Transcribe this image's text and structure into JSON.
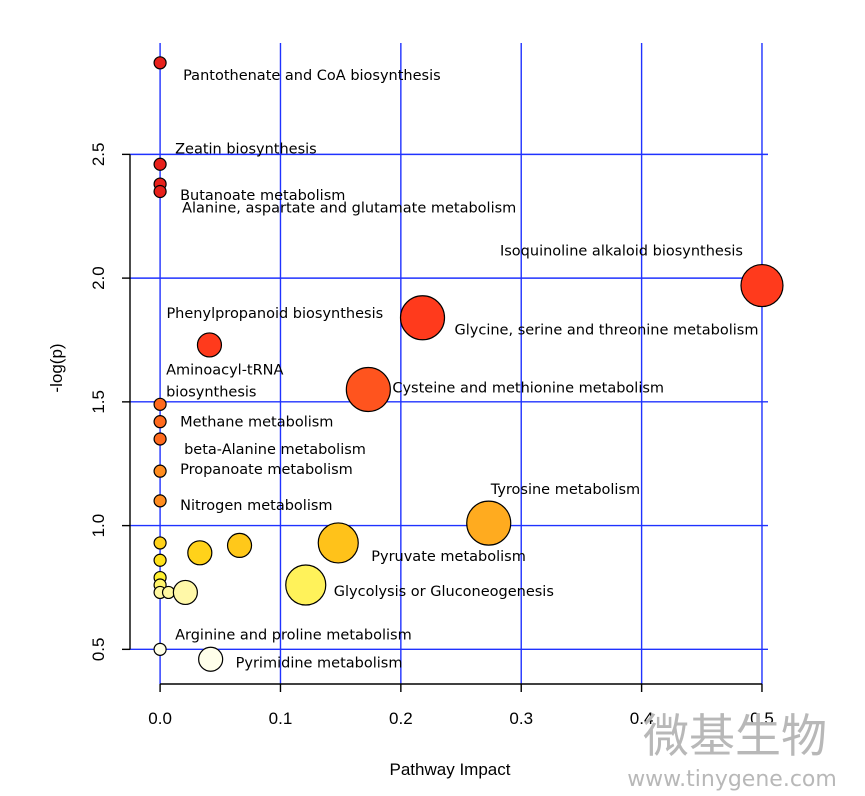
{
  "chart_data": {
    "type": "scatter",
    "title": "",
    "xlabel": "Pathway Impact",
    "ylabel": "-log(p)",
    "xlim": [
      -0.025,
      0.505
    ],
    "ylim": [
      0.36,
      2.95
    ],
    "xticks": [
      "0.0",
      "0.1",
      "0.2",
      "0.3",
      "0.4",
      "0.5"
    ],
    "yticks": [
      "0.5",
      "1.0",
      "1.5",
      "2.0",
      "2.5"
    ],
    "grid": true,
    "grid_color": "#1f32ff",
    "points": [
      {
        "x": 0.0,
        "y": 2.87,
        "size": 1,
        "color": "#e8211b",
        "label": "Pantothenate and CoA biosynthesis"
      },
      {
        "x": 0.0,
        "y": 2.46,
        "size": 1,
        "color": "#e8211b",
        "label": "Zeatin biosynthesis"
      },
      {
        "x": 0.0,
        "y": 2.38,
        "size": 1,
        "color": "#e8211b",
        "label": "Butanoate metabolism"
      },
      {
        "x": 0.0,
        "y": 2.35,
        "size": 1,
        "color": "#e8211b",
        "label": "Alanine, aspartate and glutamate metabolism"
      },
      {
        "x": 0.5,
        "y": 1.97,
        "size": 5,
        "color": "#ff3a1c",
        "label": "Isoquinoline alkaloid biosynthesis"
      },
      {
        "x": 0.218,
        "y": 1.84,
        "size": 4,
        "color": "#ff3a1c",
        "label": "Glycine, serine and threonine metabolism"
      },
      {
        "x": 0.041,
        "y": 1.73,
        "size": 2,
        "color": "#ff3a1c",
        "label": "Phenylpropanoid biosynthesis"
      },
      {
        "x": 0.173,
        "y": 1.55,
        "size": 4,
        "color": "#ff541e",
        "label": "Cysteine and methionine metabolism"
      },
      {
        "x": 0.0,
        "y": 1.49,
        "size": 1,
        "color": "#ff6a1e",
        "label": "Aminoacyl-tRNA biosynthesis"
      },
      {
        "x": 0.0,
        "y": 1.42,
        "size": 1,
        "color": "#ff6a1e",
        "label": "Methane metabolism"
      },
      {
        "x": 0.0,
        "y": 1.35,
        "size": 1,
        "color": "#ff6a1e",
        "label": "beta-Alanine metabolism"
      },
      {
        "x": 0.0,
        "y": 1.22,
        "size": 1,
        "color": "#ff8c1f",
        "label": "Propanoate metabolism"
      },
      {
        "x": 0.0,
        "y": 1.1,
        "size": 1,
        "color": "#ff8c1f",
        "label": "Nitrogen metabolism"
      },
      {
        "x": 0.273,
        "y": 1.01,
        "size": 4,
        "color": "#ffab1f",
        "label": "Tyrosine metabolism"
      },
      {
        "x": 0.0,
        "y": 0.93,
        "size": 1,
        "color": "#ffd21a",
        "label": ""
      },
      {
        "x": 0.0,
        "y": 0.86,
        "size": 1,
        "color": "#ffe11a",
        "label": ""
      },
      {
        "x": 0.033,
        "y": 0.89,
        "size": 2,
        "color": "#ffd21a",
        "label": ""
      },
      {
        "x": 0.066,
        "y": 0.92,
        "size": 2,
        "color": "#ffc81a",
        "label": ""
      },
      {
        "x": 0.148,
        "y": 0.93,
        "size": 3,
        "color": "#ffc21a",
        "label": "Pyruvate metabolism"
      },
      {
        "x": 0.0,
        "y": 0.79,
        "size": 1,
        "color": "#fff030",
        "label": ""
      },
      {
        "x": 0.0,
        "y": 0.76,
        "size": 1,
        "color": "#fff46a",
        "label": ""
      },
      {
        "x": 0.0,
        "y": 0.73,
        "size": 1,
        "color": "#fff8a0",
        "label": ""
      },
      {
        "x": 0.007,
        "y": 0.73,
        "size": 1,
        "color": "#fff8a0",
        "label": ""
      },
      {
        "x": 0.021,
        "y": 0.73,
        "size": 2,
        "color": "#fff8a8",
        "label": ""
      },
      {
        "x": 0.121,
        "y": 0.76,
        "size": 3,
        "color": "#fff25a",
        "label": "Glycolysis or Gluconeogenesis"
      },
      {
        "x": 0.0,
        "y": 0.5,
        "size": 1,
        "color": "#ffffe6",
        "label": "Arginine and proline metabolism"
      },
      {
        "x": 0.042,
        "y": 0.46,
        "size": 2,
        "color": "#ffffea",
        "label": "Pyrimidine metabolism"
      }
    ]
  },
  "watermark": {
    "text": "微基生物",
    "url": "www.tinygene.com"
  }
}
